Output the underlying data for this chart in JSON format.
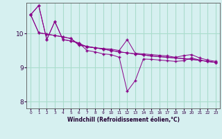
{
  "xlabel": "Windchill (Refroidissement éolien,°C)",
  "background_color": "#d6f0f0",
  "grid_color": "#aaddcc",
  "line_color": "#880088",
  "xlim": [
    -0.5,
    23.5
  ],
  "ylim": [
    7.8,
    10.9
  ],
  "yticks": [
    8,
    9,
    10
  ],
  "xticks": [
    0,
    1,
    2,
    3,
    4,
    5,
    6,
    7,
    8,
    9,
    10,
    11,
    12,
    13,
    14,
    15,
    16,
    17,
    18,
    19,
    20,
    21,
    22,
    23
  ],
  "series": [
    [
      10.55,
      10.82,
      9.82,
      10.35,
      9.82,
      9.78,
      9.72,
      9.6,
      9.58,
      9.56,
      9.54,
      9.5,
      9.82,
      9.42,
      9.4,
      9.38,
      9.36,
      9.34,
      9.3,
      9.35,
      9.38,
      9.28,
      9.22,
      9.18
    ],
    [
      10.55,
      10.82,
      9.82,
      10.35,
      9.82,
      9.78,
      9.72,
      9.5,
      9.46,
      9.4,
      9.38,
      9.3,
      8.3,
      8.62,
      9.25,
      9.24,
      9.22,
      9.2,
      9.18,
      9.2,
      9.28,
      9.22,
      9.18,
      9.15
    ],
    [
      10.55,
      10.02,
      9.98,
      9.94,
      9.9,
      9.85,
      9.65,
      9.62,
      9.58,
      9.54,
      9.5,
      9.46,
      9.43,
      9.4,
      9.37,
      9.34,
      9.32,
      9.3,
      9.28,
      9.26,
      9.24,
      9.21,
      9.18,
      9.15
    ],
    [
      10.55,
      10.02,
      9.98,
      9.94,
      9.9,
      9.85,
      9.68,
      9.62,
      9.58,
      9.54,
      9.5,
      9.46,
      9.43,
      9.4,
      9.37,
      9.34,
      9.32,
      9.3,
      9.28,
      9.26,
      9.24,
      9.21,
      9.18,
      9.15
    ]
  ]
}
